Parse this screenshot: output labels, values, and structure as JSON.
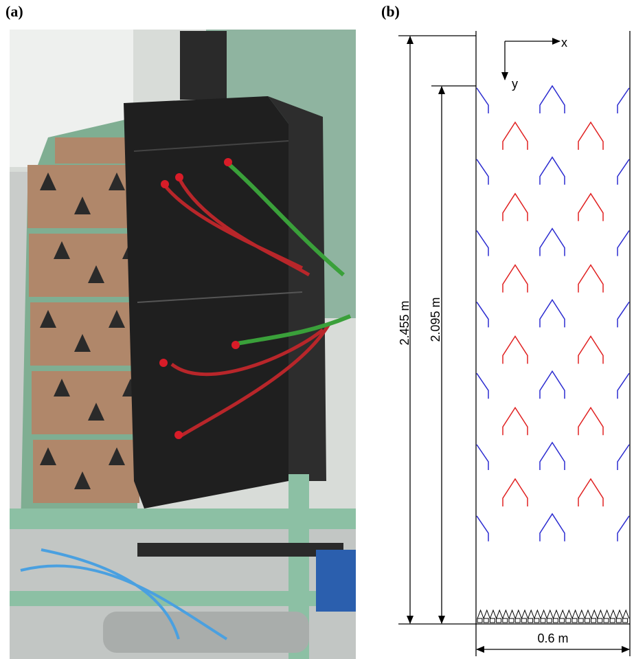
{
  "panel_a": {
    "label": "(a)"
  },
  "panel_b": {
    "label": "(b)",
    "axes": {
      "x": "x",
      "y": "y"
    },
    "dimensions": {
      "total_height": "2.455 m",
      "bed_height": "2.095 m",
      "width": "0.6 m"
    }
  }
}
